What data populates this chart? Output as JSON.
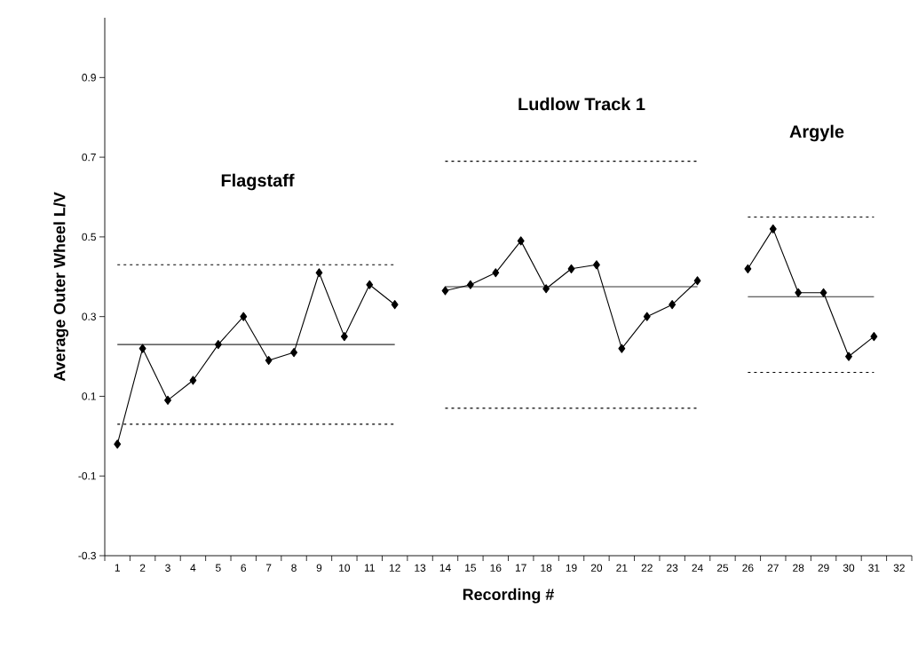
{
  "chart_data": {
    "type": "line",
    "xlabel": "Recording #",
    "ylabel": "Average Outer Wheel L/V",
    "grid": false,
    "categories": [
      "1",
      "2",
      "3",
      "4",
      "5",
      "6",
      "7",
      "8",
      "9",
      "10",
      "11",
      "12",
      "13",
      "14",
      "15",
      "16",
      "17",
      "18",
      "19",
      "20",
      "21",
      "22",
      "23",
      "24",
      "25",
      "26",
      "27",
      "28",
      "29",
      "30",
      "31",
      "32"
    ],
    "ylim": [
      -0.3,
      1.05
    ],
    "yticks": [
      -0.3,
      -0.1,
      0.1,
      0.3,
      0.5,
      0.7,
      0.9
    ],
    "series": [
      {
        "color": "#000000",
        "marker": "diamond",
        "line_style": "solid",
        "values": [
          -0.02,
          0.22,
          0.09,
          0.14,
          0.23,
          0.3,
          0.19,
          0.21,
          0.41,
          0.25,
          0.38,
          0.33,
          null,
          0.365,
          0.38,
          0.41,
          0.49,
          0.37,
          0.42,
          0.43,
          0.22,
          0.3,
          0.33,
          0.39,
          null,
          0.42,
          0.52,
          0.36,
          0.36,
          0.2,
          0.25,
          null
        ]
      },
      {
        "color": "#333333",
        "marker": "none",
        "line_style": "solid",
        "values": [
          0.23,
          0.23,
          0.23,
          0.23,
          0.23,
          0.23,
          0.23,
          0.23,
          0.23,
          0.23,
          0.23,
          0.23,
          null,
          0.375,
          0.375,
          0.375,
          0.375,
          0.375,
          0.375,
          0.375,
          0.375,
          0.375,
          0.375,
          0.375,
          null,
          0.35,
          0.35,
          0.35,
          0.35,
          0.35,
          0.35,
          null
        ]
      },
      {
        "color": "#000000",
        "marker": "none",
        "line_style": "dotted",
        "values": [
          0.43,
          0.43,
          0.43,
          0.43,
          0.43,
          0.43,
          0.43,
          0.43,
          0.43,
          0.43,
          0.43,
          0.43,
          null,
          0.69,
          0.69,
          0.69,
          0.69,
          0.69,
          0.69,
          0.69,
          0.69,
          0.69,
          0.69,
          0.69,
          null,
          0.55,
          0.55,
          0.55,
          0.55,
          0.55,
          0.55,
          null
        ]
      },
      {
        "color": "#000000",
        "marker": "none",
        "line_style": "dotted",
        "values": [
          0.03,
          0.03,
          0.03,
          0.03,
          0.03,
          0.03,
          0.03,
          0.03,
          0.03,
          0.03,
          0.03,
          0.03,
          null,
          0.07,
          0.07,
          0.07,
          0.07,
          0.07,
          0.07,
          0.07,
          0.07,
          0.07,
          0.07,
          0.07,
          null,
          0.16,
          0.16,
          0.16,
          0.16,
          0.16,
          0.16,
          null
        ]
      }
    ],
    "annotations": [
      "Flagstaff",
      "Ludlow Track 1",
      "Argyle"
    ]
  }
}
